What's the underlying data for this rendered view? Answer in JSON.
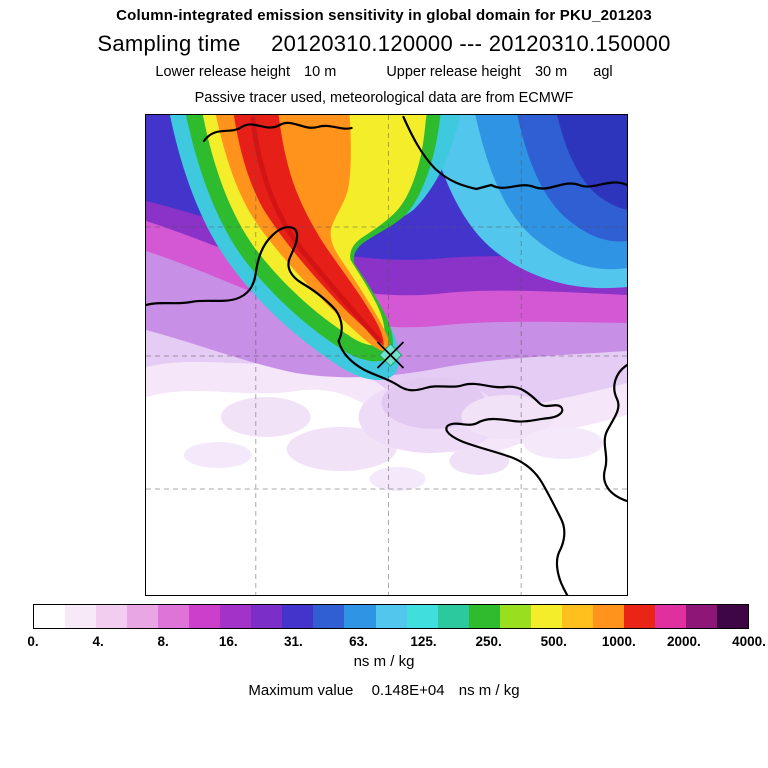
{
  "header": {
    "title": "Column-integrated emission sensitivity in global domain for PKU_201203",
    "sampling_label": "Sampling time",
    "sampling_value": "20120310.120000 --- 20120310.150000",
    "lower_release_label": "Lower release height",
    "lower_release_value": "10 m",
    "upper_release_label": "Upper release height",
    "upper_release_value": "30 m",
    "height_reference": "agl",
    "tracer_line": "Passive tracer used, meteorological data are from ECMWF"
  },
  "footer": {
    "units_label": "ns m / kg",
    "max_label": "Maximum value",
    "max_value": "0.148E+04",
    "max_units": "ns m / kg"
  },
  "chart_data": {
    "type": "heatmap",
    "title": "Column-integrated emission sensitivity in global domain for PKU_201203",
    "experiment": "PKU_201203",
    "sampling_start": "20120310.120000",
    "sampling_end": "20120310.150000",
    "lower_release_height": "10 m",
    "upper_release_height": "30 m",
    "height_reference": "agl",
    "tracer": "Passive tracer",
    "meteorology": "ECMWF",
    "units": "ns m / kg",
    "maximum_value": "0.148E+04 ns m / kg",
    "legend_position": "bottom",
    "colorbar": {
      "orientation": "horizontal",
      "scale": "logarithmic (doubling levels)",
      "tick_labels": [
        "0.",
        "4.",
        "8.",
        "16.",
        "31.",
        "63.",
        "125.",
        "250.",
        "500.",
        "1000.",
        "2000.",
        "4000."
      ],
      "colors": [
        "#ffffff",
        "#f8e9f9",
        "#f2cdf0",
        "#e9a6e4",
        "#de74d8",
        "#cb3fcb",
        "#a232c8",
        "#7b2fc8",
        "#4334cc",
        "#2f5fd2",
        "#2f94e4",
        "#52c6ec",
        "#41dede",
        "#2cc89e",
        "#2ebb2e",
        "#9ade20",
        "#f4ee2a",
        "#ffc01e",
        "#ff931c",
        "#ea2517",
        "#e0309f",
        "#8d1676",
        "#3f0646"
      ]
    },
    "map_overlay": {
      "coastlines": true,
      "gridlines": "dashed",
      "source_marker": "diamond with X cross",
      "source_position_fraction": {
        "x": 0.508,
        "y": 0.5
      },
      "plume_direction": "from source toward north-northwest, high-value core (red/orange) reaching top edge",
      "background_field": "values decrease from dark blue (top-right) through purple, magenta, pink to white (bottom-left)"
    }
  }
}
